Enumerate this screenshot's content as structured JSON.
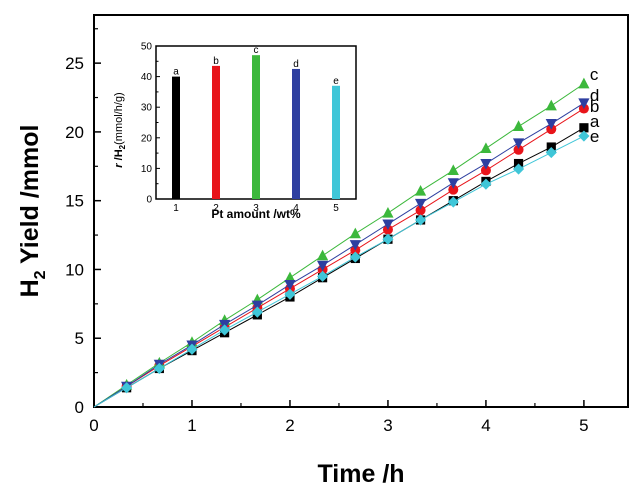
{
  "chart_data": [
    {
      "type": "line",
      "xlabel": "Time /h",
      "ylabel_main": "H",
      "ylabel_sub": "2",
      "ylabel_rest": " Yield /mmol",
      "xlim": [
        0,
        5.45
      ],
      "ylim": [
        0,
        28.5
      ],
      "xticks": [
        "0",
        "1",
        "2",
        "3",
        "4",
        "5"
      ],
      "yticks": [
        "0",
        "5",
        "10",
        "15",
        "20",
        "25"
      ],
      "x": [
        0,
        0.333,
        0.667,
        1.0,
        1.333,
        1.667,
        2.0,
        2.333,
        2.667,
        3.0,
        3.333,
        3.667,
        4.0,
        4.333,
        4.667,
        5.0
      ],
      "series": [
        {
          "name": "a",
          "color": "#000000",
          "marker": "square",
          "values": [
            0,
            1.4,
            2.8,
            4.1,
            5.4,
            6.7,
            8.0,
            9.4,
            10.8,
            12.2,
            13.6,
            15.0,
            16.4,
            17.7,
            18.9,
            20.3
          ]
        },
        {
          "name": "b",
          "color": "#e8141a",
          "marker": "circle",
          "values": [
            0,
            1.5,
            3.0,
            4.4,
            5.8,
            7.2,
            8.6,
            10.0,
            11.4,
            12.9,
            14.3,
            15.8,
            17.2,
            18.7,
            20.2,
            21.7
          ]
        },
        {
          "name": "c",
          "color": "#3cb83c",
          "marker": "triangle-up",
          "values": [
            0,
            1.6,
            3.2,
            4.7,
            6.3,
            7.8,
            9.4,
            11.0,
            12.6,
            14.1,
            15.7,
            17.2,
            18.8,
            20.4,
            21.9,
            23.5
          ]
        },
        {
          "name": "d",
          "color": "#2e3fa0",
          "marker": "triangle-down",
          "values": [
            0,
            1.5,
            3.1,
            4.5,
            6.0,
            7.4,
            8.9,
            10.3,
            11.8,
            13.3,
            14.8,
            16.3,
            17.7,
            19.2,
            20.6,
            22.1
          ]
        },
        {
          "name": "e",
          "color": "#3fc6d8",
          "marker": "diamond",
          "values": [
            0,
            1.4,
            2.8,
            4.2,
            5.6,
            6.9,
            8.2,
            9.5,
            10.9,
            12.2,
            13.6,
            14.9,
            16.2,
            17.3,
            18.5,
            19.7
          ]
        }
      ],
      "end_labels": [
        "c",
        "d",
        "b",
        "a",
        "e"
      ]
    },
    {
      "type": "bar",
      "xlabel": "Pt amount /wt%",
      "ylabel_prefix": "r",
      "ylabel_sep": " /",
      "ylabel_sym": "H",
      "ylabel_sub": "2",
      "ylabel_unit": "(mmol/h/g)",
      "categories": [
        "1",
        "2",
        "3",
        "4",
        "5"
      ],
      "values": [
        40,
        43.5,
        47,
        42.5,
        37
      ],
      "bar_labels": [
        "a",
        "b",
        "c",
        "d",
        "e"
      ],
      "colors": [
        "#000000",
        "#e8141a",
        "#3cb83c",
        "#2e3fa0",
        "#3fc6d8"
      ],
      "ylim": [
        0,
        50
      ],
      "yticks": [
        "0",
        "10",
        "20",
        "30",
        "40",
        "50"
      ]
    }
  ]
}
